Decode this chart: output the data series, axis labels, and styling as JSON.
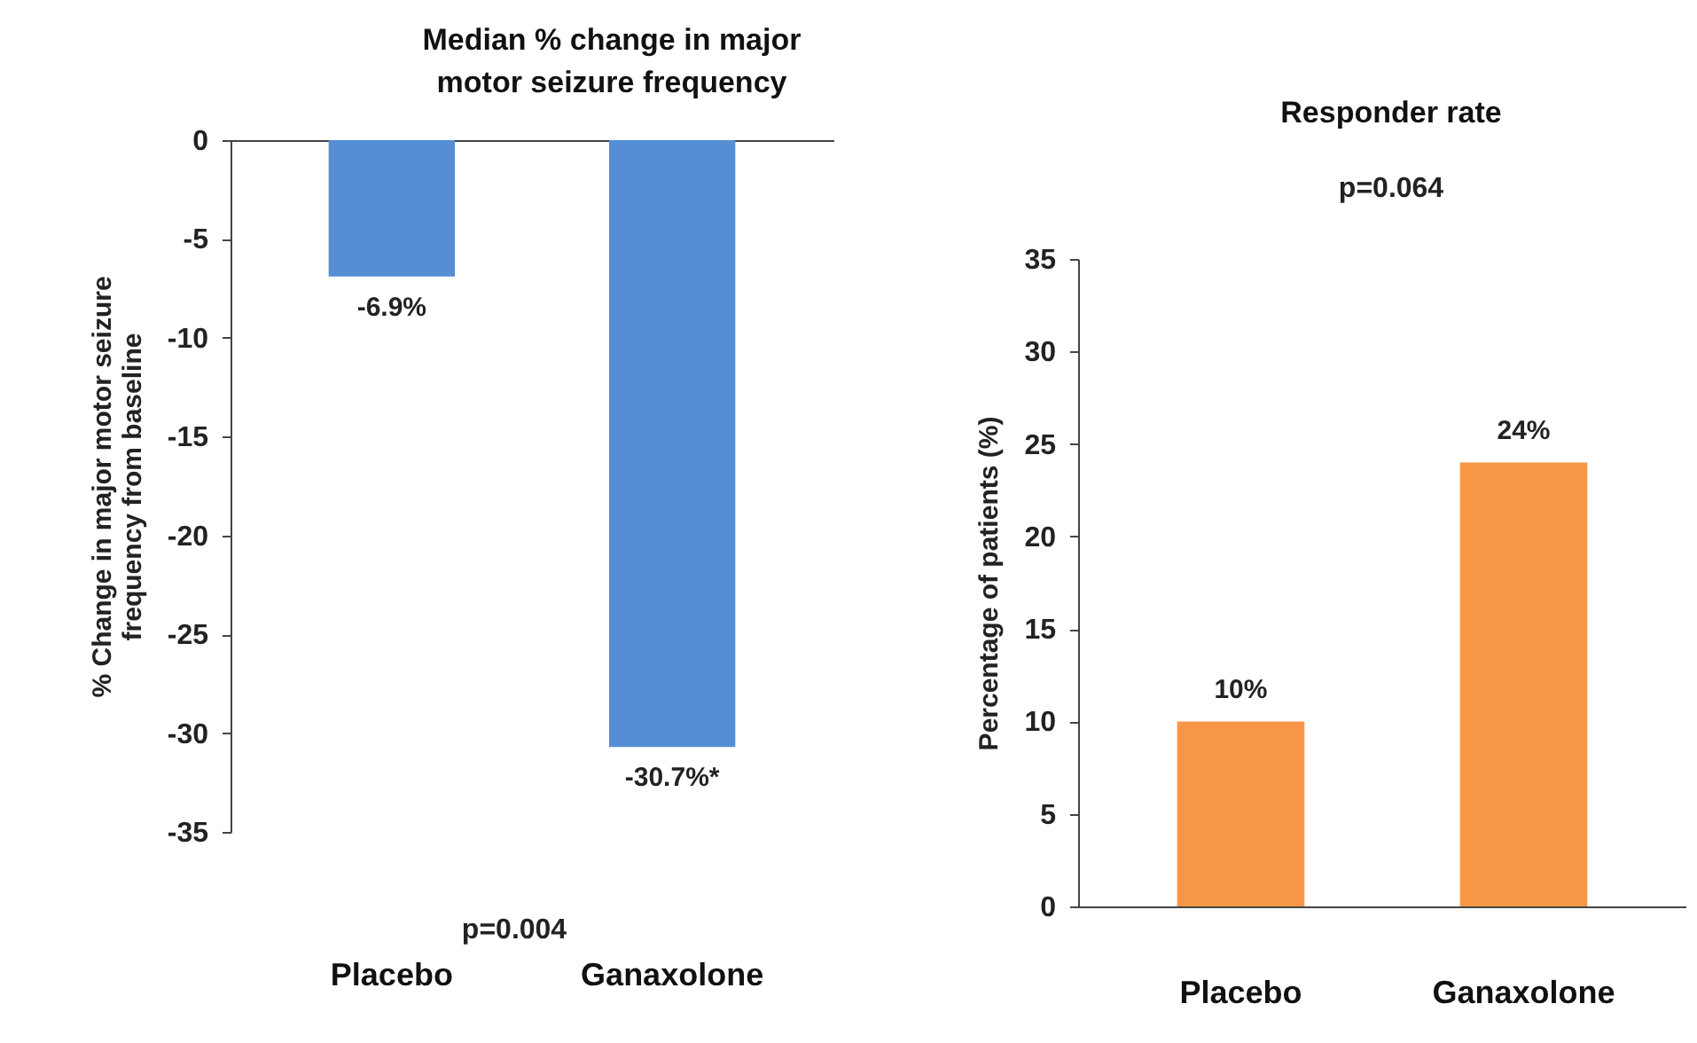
{
  "chart_data": [
    {
      "type": "bar",
      "title": "Median %  change in major\nmotor seizure frequency",
      "ylabel": "% Change in major motor seizure\nfrequency  from baseline",
      "categories": [
        "Placebo",
        "Ganaxolone"
      ],
      "series": [
        {
          "color": "#558ed5",
          "values": [
            -6.9,
            -30.7
          ],
          "value_labels": [
            "-6.9%",
            "-30.7%*"
          ]
        }
      ],
      "ylim": [
        -35,
        0
      ],
      "yticks": [
        0,
        -5,
        -10,
        -15,
        -20,
        -25,
        -30,
        -35
      ],
      "annotations": [
        "p=0.004"
      ]
    },
    {
      "type": "bar",
      "title": "Responder rate",
      "ylabel": "Percentage of patients (%)",
      "categories": [
        "Placebo",
        "Ganaxolone"
      ],
      "series": [
        {
          "color": "#f79646",
          "values": [
            10,
            24
          ],
          "value_labels": [
            "10%",
            "24%"
          ]
        }
      ],
      "ylim": [
        0,
        35
      ],
      "yticks": [
        0,
        5,
        10,
        15,
        20,
        25,
        30,
        35
      ],
      "annotations": [
        "p=0.064"
      ]
    }
  ]
}
